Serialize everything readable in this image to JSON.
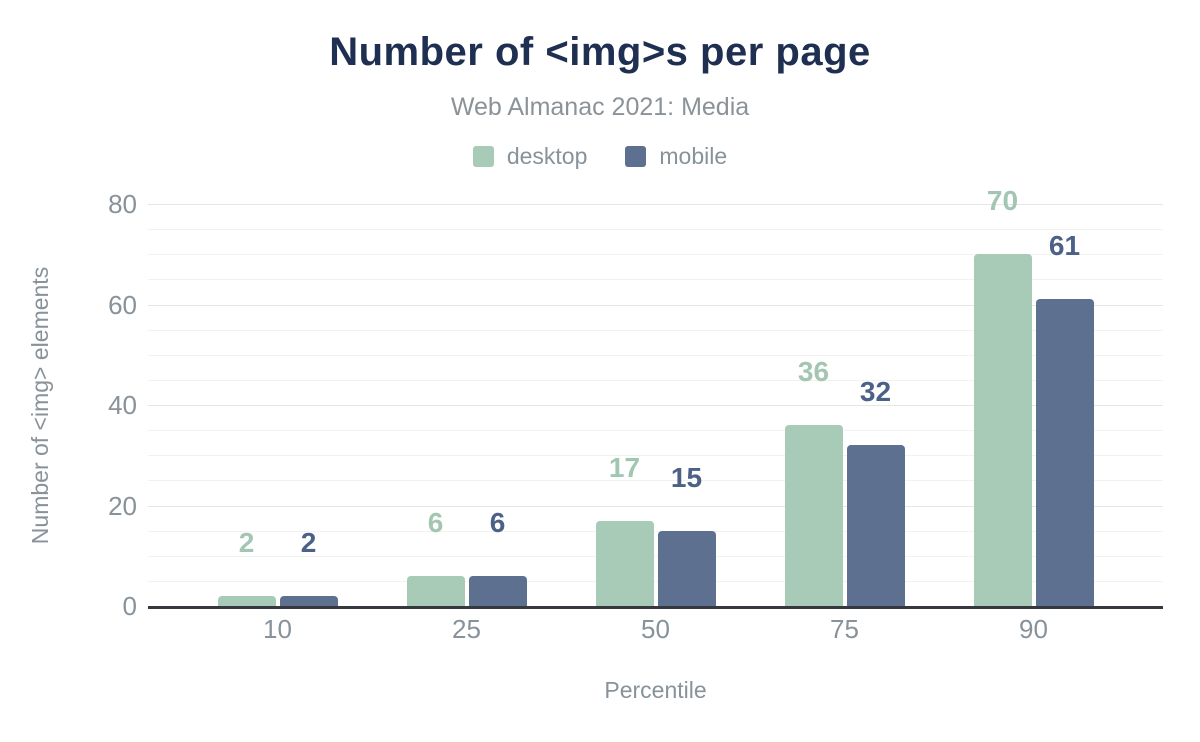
{
  "header": {
    "title": "Number of <img>s per page",
    "subtitle": "Web Almanac 2021: Media"
  },
  "chart_data": {
    "type": "bar",
    "title": "Number of <img>s per page",
    "subtitle": "Web Almanac 2021: Media",
    "categories": [
      "10",
      "25",
      "50",
      "75",
      "90"
    ],
    "series": [
      {
        "name": "desktop",
        "values": [
          2,
          6,
          17,
          36,
          70
        ],
        "color": "#a8cbb8",
        "label_color": "#a2c6b1"
      },
      {
        "name": "mobile",
        "values": [
          2,
          6,
          15,
          32,
          61
        ],
        "color": "#5e7090",
        "label_color": "#4c6187"
      }
    ],
    "xlabel": "Percentile",
    "ylabel": "Number of <img> elements",
    "ylim": [
      0,
      80
    ],
    "yticks": [
      0,
      20,
      40,
      60,
      80
    ],
    "minor_grid_step": 5,
    "grid": "horizontal-only",
    "legend_position": "top",
    "bar_value_labels": true,
    "colors": {
      "title": "#1e2f51",
      "subtitle": "#8b9398",
      "axis_text": "#87929b",
      "axis_line": "#35383f",
      "grid_major": "#e8e6e3",
      "grid_minor": "#f4f2f0",
      "background": "#ffffff"
    }
  }
}
